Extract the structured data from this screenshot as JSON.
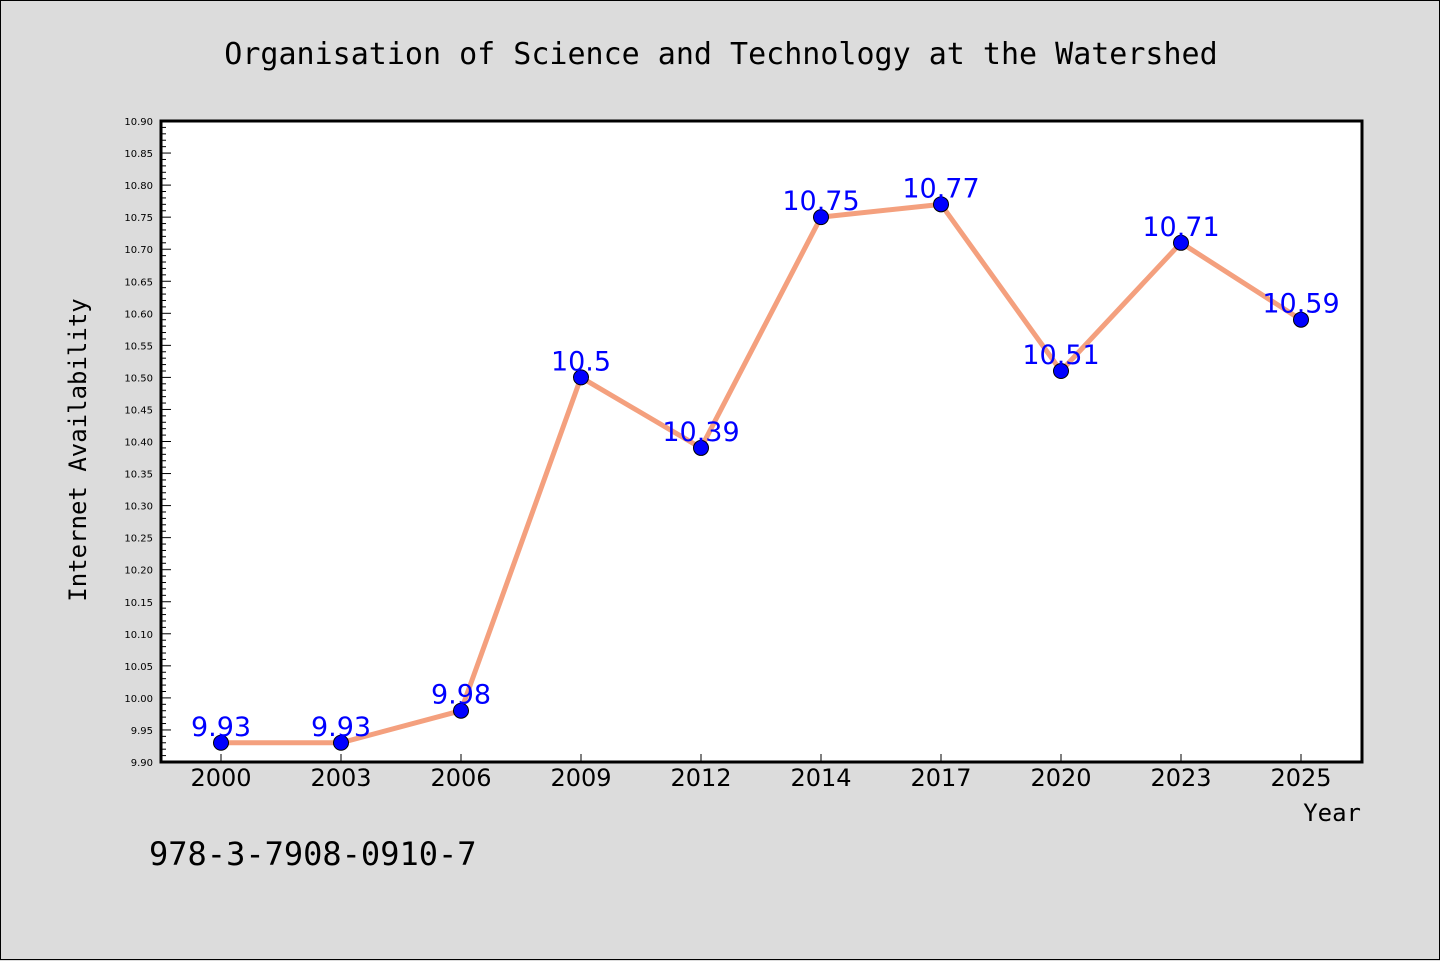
{
  "chart_data": {
    "type": "line",
    "title": "Organisation of Science and Technology at the Watershed",
    "xlabel": "Year",
    "ylabel": "Internet Availability",
    "categories": [
      "2000",
      "2003",
      "2006",
      "2009",
      "2012",
      "2014",
      "2017",
      "2020",
      "2023",
      "2025"
    ],
    "series": [
      {
        "values": [
          9.93,
          9.93,
          9.98,
          10.5,
          10.39,
          10.75,
          10.77,
          10.51,
          10.71,
          10.59
        ],
        "data_labels": [
          "9.93",
          "9.93",
          "9.98",
          "10.5",
          "10.39",
          "10.75",
          "10.77",
          "10.51",
          "10.71",
          "10.59"
        ],
        "line_color": "#f4a07e",
        "marker_color": "#0000ff"
      }
    ],
    "ylim": [
      9.9,
      10.9
    ],
    "yticks": [
      "9.90",
      "9.95",
      "10.00",
      "10.05",
      "10.10",
      "10.15",
      "10.20",
      "10.25",
      "10.30",
      "10.35",
      "10.40",
      "10.45",
      "10.50",
      "10.55",
      "10.60",
      "10.65",
      "10.70",
      "10.75",
      "10.80",
      "10.85",
      "10.90"
    ],
    "grid": false,
    "legend": "none",
    "colors": {
      "background": "#dcdcdc",
      "plot_background": "#ffffff",
      "label_color": "#0000ff"
    }
  },
  "footer": {
    "isbn": "978-3-7908-0910-7"
  }
}
